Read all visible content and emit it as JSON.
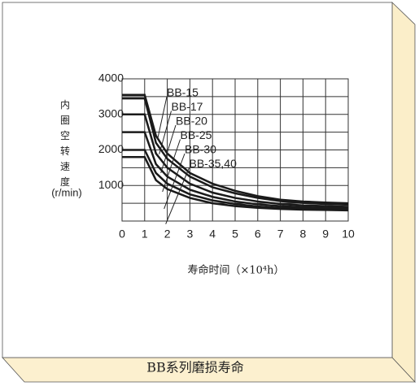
{
  "chart_data": {
    "type": "line",
    "caption": "BB系列磨损寿命",
    "xlabel": "寿命时间（×10⁴h）",
    "ylabel": "内圈空转速度",
    "yunit": "(r/min)",
    "x": [
      0,
      1,
      1.5,
      2,
      3,
      4,
      5,
      6,
      7,
      8,
      9,
      10
    ],
    "series": [
      {
        "name": "BB-15",
        "color": "#1a1a1a",
        "values": [
          3550,
          3550,
          2400,
          1900,
          1350,
          1050,
          850,
          700,
          600,
          550,
          520,
          500
        ]
      },
      {
        "name": "BB-17",
        "color": "#1a1a1a",
        "values": [
          3450,
          3450,
          2200,
          1750,
          1250,
          950,
          780,
          650,
          560,
          510,
          480,
          460
        ]
      },
      {
        "name": "BB-20",
        "color": "#1a1a1a",
        "values": [
          3000,
          3000,
          1900,
          1500,
          1050,
          800,
          650,
          550,
          480,
          440,
          420,
          400
        ]
      },
      {
        "name": "BB-25",
        "color": "#1a1a1a",
        "values": [
          2500,
          2500,
          1600,
          1250,
          880,
          680,
          550,
          470,
          420,
          390,
          370,
          360
        ]
      },
      {
        "name": "BB-30",
        "color": "#1a1a1a",
        "values": [
          2000,
          2000,
          1350,
          1050,
          750,
          580,
          480,
          410,
          370,
          350,
          330,
          320
        ]
      },
      {
        "name": "BB-35,40",
        "color": "#1a1a1a",
        "values": [
          1800,
          1800,
          1150,
          900,
          650,
          500,
          420,
          370,
          340,
          320,
          310,
          300
        ]
      }
    ],
    "xlim": [
      0,
      10
    ],
    "xticks": [
      0,
      1,
      2,
      3,
      4,
      5,
      6,
      7,
      8,
      9,
      10
    ],
    "ylim": [
      0,
      4000
    ],
    "yticks": [
      1000,
      2000,
      3000,
      4000
    ],
    "minor_yticks": [
      500,
      1500,
      2500,
      3500
    ],
    "grid": true
  }
}
